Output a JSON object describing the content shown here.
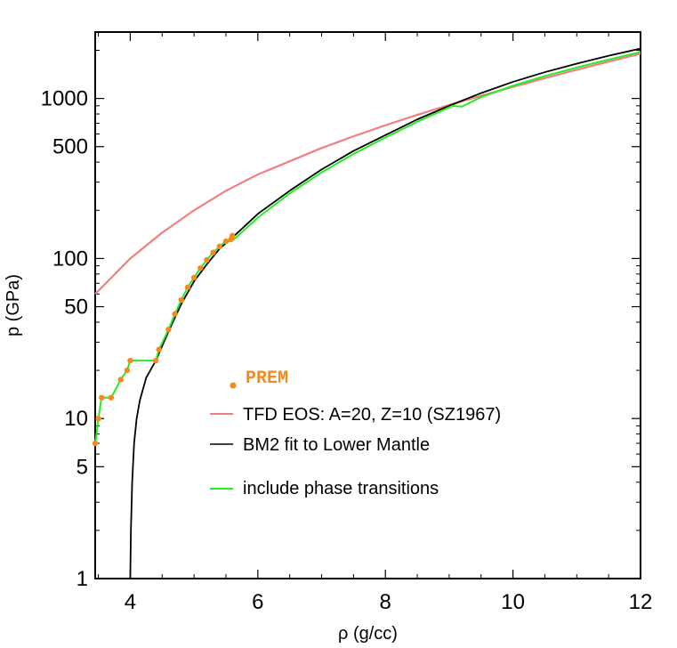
{
  "chart_data": {
    "type": "line",
    "xlabel": "ρ (g/cc)",
    "ylabel": "p (GPa)",
    "xlim": [
      3.45,
      12
    ],
    "ylim": [
      1,
      2600
    ],
    "y_scale": "log",
    "x_ticks": [
      4,
      6,
      8,
      10,
      12
    ],
    "x_tick_labels": [
      "4",
      "6",
      "8",
      "10",
      "12"
    ],
    "y_ticks": [
      1,
      5,
      10,
      50,
      100,
      500,
      1000
    ],
    "y_tick_labels": [
      "1",
      "5",
      "10",
      "50",
      "100",
      "500",
      "1000"
    ],
    "colors": {
      "tfd": "#f08080",
      "bm2": "#000000",
      "phase": "#22ee22",
      "prem": "#f28a1c",
      "frame": "#000000"
    },
    "legend": {
      "placement": "center",
      "entries": [
        {
          "key": "prem",
          "label": "PREM",
          "marker": "dot"
        },
        {
          "key": "tfd",
          "label": "TFD EOS: A=20, Z=10 (SZ1967)",
          "marker": "line"
        },
        {
          "key": "bm2",
          "label": "BM2 fit to Lower Mantle",
          "marker": "line"
        },
        {
          "key": "phase",
          "label": "include phase transitions",
          "marker": "line"
        }
      ]
    },
    "series": [
      {
        "key": "tfd",
        "type": "line",
        "points": [
          [
            3.45,
            60
          ],
          [
            4.0,
            100
          ],
          [
            4.5,
            145
          ],
          [
            5.0,
            200
          ],
          [
            5.5,
            265
          ],
          [
            6.0,
            335
          ],
          [
            6.5,
            405
          ],
          [
            7.0,
            490
          ],
          [
            7.5,
            580
          ],
          [
            8.0,
            680
          ],
          [
            8.5,
            790
          ],
          [
            9.0,
            910
          ],
          [
            9.5,
            1040
          ],
          [
            10.0,
            1180
          ],
          [
            10.5,
            1340
          ],
          [
            11.0,
            1510
          ],
          [
            11.5,
            1700
          ],
          [
            12.0,
            1900
          ]
        ]
      },
      {
        "key": "bm2",
        "type": "line",
        "points": [
          [
            4.0,
            1
          ],
          [
            4.01,
            2
          ],
          [
            4.03,
            4
          ],
          [
            4.06,
            7
          ],
          [
            4.1,
            10
          ],
          [
            4.15,
            13
          ],
          [
            4.25,
            18
          ],
          [
            4.4,
            23
          ],
          [
            4.6,
            35
          ],
          [
            4.8,
            52
          ],
          [
            5.0,
            72
          ],
          [
            5.2,
            92
          ],
          [
            5.4,
            115
          ],
          [
            5.6,
            135
          ],
          [
            5.8,
            160
          ],
          [
            6.0,
            190
          ],
          [
            6.5,
            265
          ],
          [
            7.0,
            360
          ],
          [
            7.5,
            470
          ],
          [
            8.0,
            590
          ],
          [
            8.5,
            740
          ],
          [
            9.0,
            900
          ],
          [
            9.5,
            1080
          ],
          [
            10.0,
            1270
          ],
          [
            10.5,
            1460
          ],
          [
            11.0,
            1650
          ],
          [
            11.5,
            1850
          ],
          [
            12.0,
            2050
          ]
        ]
      },
      {
        "key": "phase",
        "type": "line",
        "points": [
          [
            3.45,
            7
          ],
          [
            3.48,
            8.5
          ],
          [
            3.5,
            10
          ],
          [
            3.55,
            13.5
          ],
          [
            3.7,
            13.5
          ],
          [
            3.85,
            17.5
          ],
          [
            3.95,
            20
          ],
          [
            4.0,
            23
          ],
          [
            4.4,
            23
          ],
          [
            4.45,
            27
          ],
          [
            4.6,
            36
          ],
          [
            4.7,
            45
          ],
          [
            4.8,
            55
          ],
          [
            4.9,
            66
          ],
          [
            5.0,
            76
          ],
          [
            5.1,
            87
          ],
          [
            5.2,
            98
          ],
          [
            5.3,
            109
          ],
          [
            5.4,
            119
          ],
          [
            5.5,
            128
          ],
          [
            5.58,
            128
          ],
          [
            5.62,
            131
          ],
          [
            6.0,
            180
          ],
          [
            6.5,
            255
          ],
          [
            7.0,
            345
          ],
          [
            7.5,
            450
          ],
          [
            8.0,
            570
          ],
          [
            8.5,
            715
          ],
          [
            9.0,
            880
          ],
          [
            9.05,
            900
          ],
          [
            9.2,
            890
          ],
          [
            9.5,
            1020
          ],
          [
            10.0,
            1200
          ],
          [
            10.5,
            1380
          ],
          [
            11.0,
            1560
          ],
          [
            11.5,
            1750
          ],
          [
            12.0,
            1950
          ]
        ]
      },
      {
        "key": "prem",
        "type": "scatter",
        "points": [
          [
            3.45,
            7
          ],
          [
            3.5,
            10
          ],
          [
            3.55,
            13.5
          ],
          [
            3.7,
            13.5
          ],
          [
            3.85,
            17.5
          ],
          [
            3.95,
            20
          ],
          [
            4.0,
            23
          ],
          [
            4.4,
            23
          ],
          [
            4.45,
            27
          ],
          [
            4.6,
            36
          ],
          [
            4.7,
            45
          ],
          [
            4.8,
            55
          ],
          [
            4.9,
            66
          ],
          [
            5.0,
            76
          ],
          [
            5.1,
            87
          ],
          [
            5.2,
            98
          ],
          [
            5.3,
            109
          ],
          [
            5.4,
            119
          ],
          [
            5.5,
            128
          ],
          [
            5.58,
            132
          ],
          [
            5.6,
            139
          ]
        ]
      }
    ]
  }
}
